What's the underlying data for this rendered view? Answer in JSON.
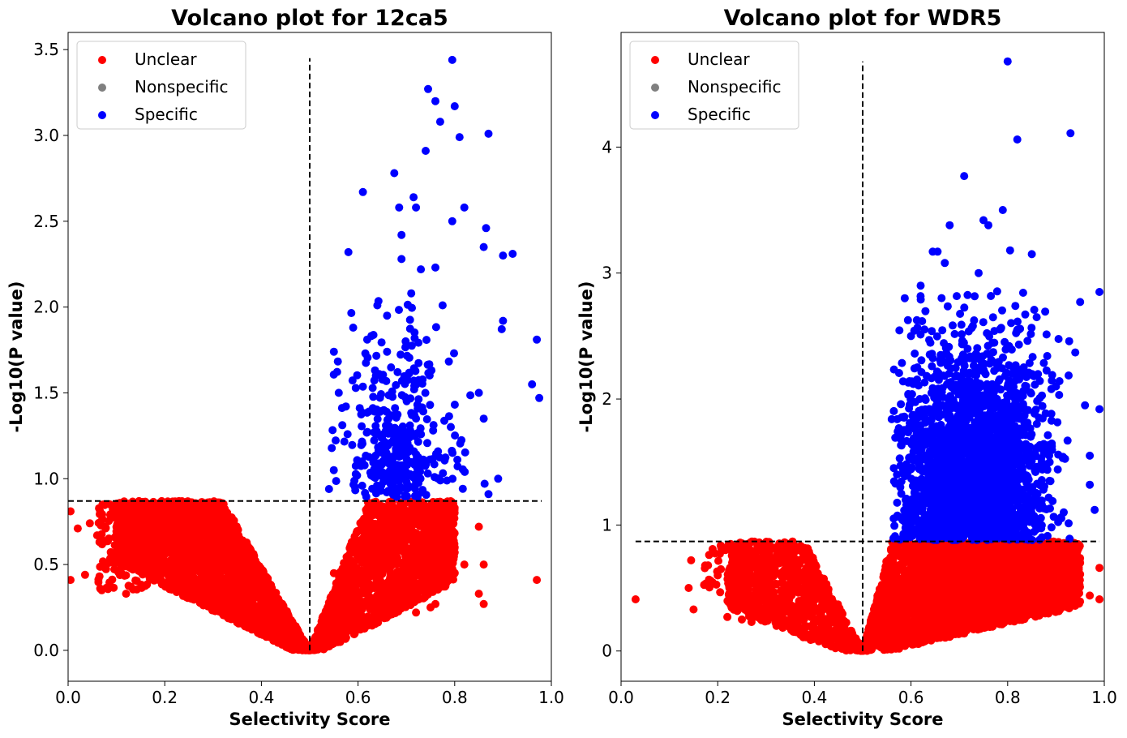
{
  "colors": {
    "unclear": "#ff0000",
    "nonspecific": "#808080",
    "specific": "#0000ff"
  },
  "legend": {
    "placement": "upper-left",
    "entries": [
      "Unclear",
      "Nonspecific",
      "Specific"
    ]
  },
  "chart_data": [
    {
      "type": "scatter",
      "title": "Volcano plot for 12ca5",
      "xlabel": "Selectivity Score",
      "ylabel": "-Log10(P value)",
      "xlim": [
        0.0,
        1.0
      ],
      "ylim": [
        -0.18,
        3.6
      ],
      "xticks": [
        "0.0",
        "0.2",
        "0.4",
        "0.6",
        "0.8",
        "1.0"
      ],
      "yticks": [
        "0.0",
        "0.5",
        "1.0",
        "1.5",
        "2.0",
        "2.5",
        "3.0",
        "3.5"
      ],
      "ytick_values": [
        0.0,
        0.5,
        1.0,
        1.5,
        2.0,
        2.5,
        3.0,
        3.5
      ],
      "threshold_x": 0.5,
      "threshold_y": 0.87,
      "vline_range": [
        0.0,
        3.45
      ],
      "hline_range": [
        0.0,
        0.98
      ],
      "series": [
        {
          "name": "Unclear",
          "color": "#ff0000",
          "estimated_points": 6000,
          "points": [
            [
              0.005,
              0.81
            ],
            [
              0.005,
              0.41
            ],
            [
              0.02,
              0.71
            ],
            [
              0.035,
              0.44
            ],
            [
              0.045,
              0.74
            ],
            [
              0.06,
              0.67
            ],
            [
              0.075,
              0.85
            ],
            [
              0.09,
              0.55
            ],
            [
              0.11,
              0.78
            ],
            [
              0.13,
              0.37
            ],
            [
              0.12,
              0.33
            ],
            [
              0.2,
              0.5
            ],
            [
              0.3,
              0.6
            ],
            [
              0.4,
              0.4
            ],
            [
              0.45,
              0.2
            ],
            [
              0.55,
              0.45
            ],
            [
              0.6,
              0.6
            ],
            [
              0.7,
              0.35
            ],
            [
              0.72,
              0.22
            ],
            [
              0.75,
              0.25
            ],
            [
              0.76,
              0.27
            ],
            [
              0.8,
              0.6
            ],
            [
              0.82,
              0.5
            ],
            [
              0.85,
              0.72
            ],
            [
              0.86,
              0.5
            ],
            [
              0.86,
              0.27
            ],
            [
              0.85,
              0.33
            ],
            [
              0.97,
              0.41
            ],
            [
              0.78,
              0.45
            ],
            [
              0.8,
              0.57
            ]
          ]
        },
        {
          "name": "Nonspecific",
          "color": "#808080",
          "points": []
        },
        {
          "name": "Specific",
          "color": "#0000ff",
          "estimated_points": 450,
          "points": [
            [
              0.54,
              0.94
            ],
            [
              0.55,
              1.74
            ],
            [
              0.56,
              1.5
            ],
            [
              0.58,
              2.32
            ],
            [
              0.59,
              1.88
            ],
            [
              0.61,
              2.67
            ],
            [
              0.64,
              2.01
            ],
            [
              0.66,
              1.95
            ],
            [
              0.675,
              2.78
            ],
            [
              0.685,
              2.58
            ],
            [
              0.69,
              2.42
            ],
            [
              0.69,
              2.28
            ],
            [
              0.71,
              2.08
            ],
            [
              0.715,
              2.64
            ],
            [
              0.72,
              2.58
            ],
            [
              0.73,
              2.22
            ],
            [
              0.74,
              2.91
            ],
            [
              0.745,
              3.27
            ],
            [
              0.76,
              3.2
            ],
            [
              0.76,
              2.23
            ],
            [
              0.77,
              3.08
            ],
            [
              0.775,
              2.01
            ],
            [
              0.795,
              3.44
            ],
            [
              0.795,
              2.5
            ],
            [
              0.8,
              3.17
            ],
            [
              0.81,
              2.99
            ],
            [
              0.82,
              2.58
            ],
            [
              0.86,
              2.35
            ],
            [
              0.865,
              2.46
            ],
            [
              0.87,
              3.01
            ],
            [
              0.9,
              2.3
            ],
            [
              0.9,
              1.92
            ],
            [
              0.92,
              2.31
            ],
            [
              0.96,
              1.55
            ],
            [
              0.97,
              1.81
            ],
            [
              0.975,
              1.47
            ],
            [
              0.85,
              1.5
            ],
            [
              0.86,
              1.35
            ],
            [
              0.89,
              1.0
            ],
            [
              0.87,
              0.91
            ]
          ]
        }
      ]
    },
    {
      "type": "scatter",
      "title": "Volcano plot for WDR5",
      "xlabel": "Selectivity Score",
      "ylabel": "-Log10(P value)",
      "xlim": [
        0.0,
        1.0
      ],
      "ylim": [
        -0.24,
        4.91
      ],
      "xticks": [
        "0.0",
        "0.2",
        "0.4",
        "0.6",
        "0.8",
        "1.0"
      ],
      "yticks": [
        "0",
        "1",
        "2",
        "3",
        "4"
      ],
      "ytick_values": [
        0,
        1,
        2,
        3,
        4
      ],
      "threshold_x": 0.5,
      "threshold_y": 0.87,
      "vline_range": [
        0.0,
        4.68
      ],
      "hline_range": [
        0.03,
        0.99
      ],
      "series": [
        {
          "name": "Unclear",
          "color": "#ff0000",
          "estimated_points": 6000,
          "points": [
            [
              0.03,
              0.41
            ],
            [
              0.14,
              0.5
            ],
            [
              0.145,
              0.72
            ],
            [
              0.15,
              0.33
            ],
            [
              0.18,
              0.68
            ],
            [
              0.2,
              0.6
            ],
            [
              0.22,
              0.27
            ],
            [
              0.25,
              0.25
            ],
            [
              0.27,
              0.23
            ],
            [
              0.3,
              0.6
            ],
            [
              0.35,
              0.5
            ],
            [
              0.4,
              0.4
            ],
            [
              0.45,
              0.25
            ],
            [
              0.6,
              0.3
            ],
            [
              0.7,
              0.5
            ],
            [
              0.8,
              0.6
            ],
            [
              0.9,
              0.6
            ],
            [
              0.95,
              0.7
            ],
            [
              0.97,
              0.44
            ],
            [
              0.99,
              0.41
            ],
            [
              0.99,
              0.66
            ]
          ]
        },
        {
          "name": "Nonspecific",
          "color": "#808080",
          "points": []
        },
        {
          "name": "Specific",
          "color": "#0000ff",
          "estimated_points": 3000,
          "points": [
            [
              0.56,
              1.84
            ],
            [
              0.6,
              2.5
            ],
            [
              0.62,
              2.9
            ],
            [
              0.645,
              3.17
            ],
            [
              0.655,
              3.17
            ],
            [
              0.67,
              3.08
            ],
            [
              0.68,
              3.38
            ],
            [
              0.71,
              3.77
            ],
            [
              0.74,
              3.0
            ],
            [
              0.75,
              3.42
            ],
            [
              0.76,
              3.38
            ],
            [
              0.79,
              3.5
            ],
            [
              0.8,
              4.68
            ],
            [
              0.805,
              3.18
            ],
            [
              0.82,
              4.06
            ],
            [
              0.85,
              3.15
            ],
            [
              0.86,
              2.65
            ],
            [
              0.9,
              2.1
            ],
            [
              0.93,
              4.11
            ],
            [
              0.94,
              2.37
            ],
            [
              0.95,
              2.77
            ],
            [
              0.96,
              1.95
            ],
            [
              0.97,
              1.32
            ],
            [
              0.98,
              1.12
            ],
            [
              0.99,
              2.85
            ],
            [
              0.99,
              1.92
            ],
            [
              0.97,
              1.55
            ]
          ]
        }
      ]
    }
  ]
}
